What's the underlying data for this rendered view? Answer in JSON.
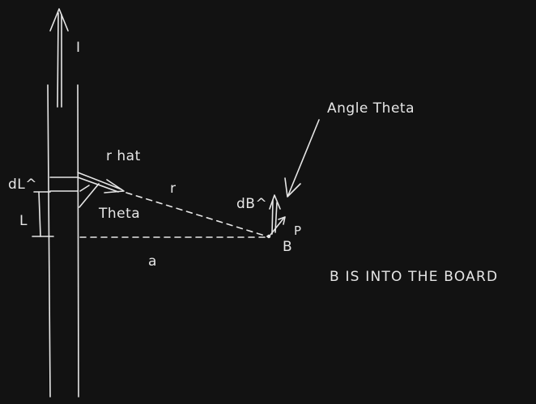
{
  "labels": {
    "current": "I",
    "r_hat": "r hat",
    "dl": "dL^",
    "l": "L",
    "theta": "Theta",
    "r": "r",
    "a": "a",
    "db": "dB^",
    "p": "P",
    "b": "B",
    "angle_theta": "Angle Theta",
    "note": "B IS INTO THE BOARD"
  },
  "colors": {
    "background": "#121212",
    "ink": "#e6e6e6"
  }
}
